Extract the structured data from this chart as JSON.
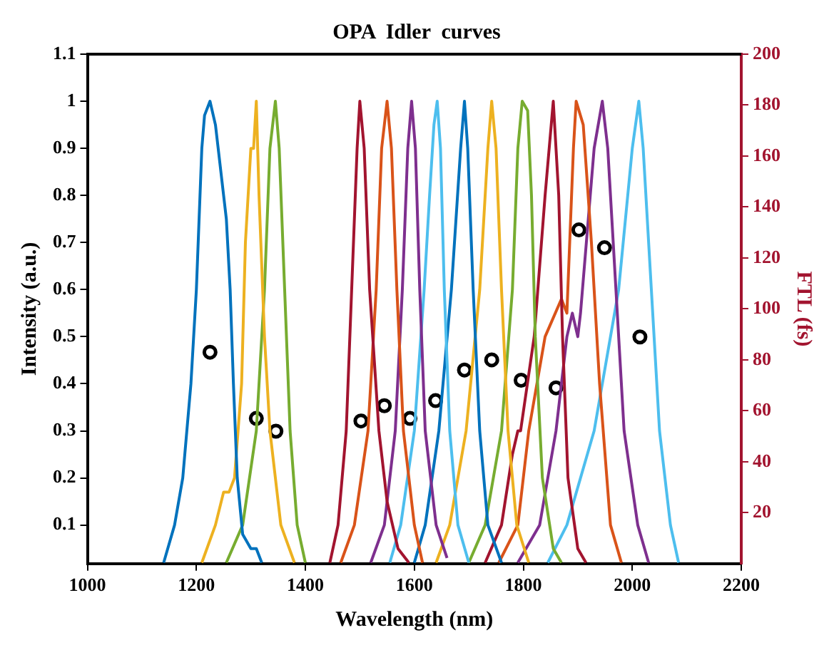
{
  "chart_data": {
    "type": "line",
    "title": "OPA  Idler  curves",
    "xlabel": "Wavelength (nm)",
    "ylabel": "Intensity (a.u.)",
    "y2label": "FTL (fs)",
    "xlim": [
      1000,
      2200
    ],
    "xticks": [
      1000,
      1200,
      1400,
      1600,
      1800,
      2000,
      2200
    ],
    "ylim": [
      0.018,
      1.1
    ],
    "yticks": [
      0.1,
      0.2,
      0.3,
      0.4,
      0.5,
      0.6,
      0.7,
      0.8,
      0.9,
      1,
      1.1
    ],
    "y2lim": [
      0,
      200
    ],
    "y2ticks": [
      20,
      40,
      60,
      80,
      100,
      120,
      140,
      160,
      180,
      200
    ],
    "grid": false,
    "legend": false,
    "marker": "none",
    "line_style": "solid",
    "series": [
      {
        "color": "#0072bd",
        "x": [
          1140,
          1160,
          1175,
          1190,
          1200,
          1210,
          1215,
          1225,
          1235,
          1250,
          1255,
          1262,
          1268,
          1275,
          1285,
          1300,
          1310,
          1320
        ],
        "values": [
          0.02,
          0.1,
          0.2,
          0.4,
          0.6,
          0.9,
          0.97,
          1.0,
          0.95,
          0.8,
          0.75,
          0.6,
          0.4,
          0.2,
          0.08,
          0.05,
          0.05,
          0.02
        ]
      },
      {
        "color": "#edb120",
        "x": [
          1210,
          1235,
          1250,
          1260,
          1270,
          1283,
          1290,
          1300,
          1305,
          1310,
          1315,
          1325,
          1335,
          1355,
          1380
        ],
        "values": [
          0.02,
          0.1,
          0.17,
          0.17,
          0.2,
          0.4,
          0.7,
          0.9,
          0.9,
          1.0,
          0.8,
          0.5,
          0.3,
          0.1,
          0.02
        ]
      },
      {
        "color": "#77ac30",
        "x": [
          1255,
          1285,
          1310,
          1325,
          1335,
          1345,
          1352,
          1362,
          1372,
          1385,
          1400
        ],
        "values": [
          0.02,
          0.1,
          0.3,
          0.6,
          0.9,
          1.0,
          0.9,
          0.6,
          0.3,
          0.1,
          0.02
        ]
      },
      {
        "color": "#a2142f",
        "x": [
          1445,
          1460,
          1475,
          1485,
          1495,
          1500,
          1508,
          1518,
          1535,
          1550,
          1570,
          1590
        ],
        "values": [
          0.02,
          0.1,
          0.3,
          0.6,
          0.9,
          1.0,
          0.9,
          0.6,
          0.3,
          0.15,
          0.05,
          0.02
        ]
      },
      {
        "color": "#d95319",
        "x": [
          1465,
          1490,
          1515,
          1530,
          1540,
          1550,
          1558,
          1568,
          1580,
          1600,
          1615
        ],
        "values": [
          0.02,
          0.1,
          0.3,
          0.6,
          0.9,
          1.0,
          0.9,
          0.6,
          0.3,
          0.1,
          0.02
        ]
      },
      {
        "color": "#7e2f8e",
        "x": [
          1520,
          1545,
          1565,
          1578,
          1588,
          1595,
          1602,
          1610,
          1620,
          1640,
          1660
        ],
        "values": [
          0.02,
          0.1,
          0.3,
          0.6,
          0.9,
          1.0,
          0.9,
          0.6,
          0.3,
          0.1,
          0.03
        ]
      },
      {
        "color": "#4dbeee",
        "x": [
          1555,
          1575,
          1600,
          1618,
          1628,
          1636,
          1642,
          1648,
          1655,
          1665,
          1680,
          1700
        ],
        "values": [
          0.02,
          0.1,
          0.3,
          0.6,
          0.8,
          0.95,
          1.0,
          0.9,
          0.6,
          0.3,
          0.1,
          0.02
        ]
      },
      {
        "color": "#0072bd",
        "x": [
          1600,
          1620,
          1645,
          1668,
          1685,
          1692,
          1698,
          1708,
          1720,
          1735,
          1760
        ],
        "values": [
          0.02,
          0.1,
          0.3,
          0.6,
          0.9,
          1.0,
          0.9,
          0.6,
          0.3,
          0.1,
          0.02
        ]
      },
      {
        "color": "#edb120",
        "x": [
          1640,
          1665,
          1695,
          1720,
          1735,
          1742,
          1750,
          1760,
          1772,
          1788,
          1810
        ],
        "values": [
          0.02,
          0.1,
          0.3,
          0.6,
          0.9,
          1.0,
          0.9,
          0.6,
          0.3,
          0.1,
          0.02
        ]
      },
      {
        "color": "#77ac30",
        "x": [
          1700,
          1730,
          1760,
          1780,
          1790,
          1798,
          1808,
          1815,
          1822,
          1835,
          1855,
          1870
        ],
        "values": [
          0.02,
          0.1,
          0.3,
          0.6,
          0.9,
          1.0,
          0.98,
          0.8,
          0.5,
          0.2,
          0.05,
          0.02
        ]
      },
      {
        "color": "#a2142f",
        "x": [
          1730,
          1760,
          1780,
          1790,
          1795,
          1820,
          1840,
          1855,
          1865,
          1872,
          1882,
          1900,
          1915
        ],
        "values": [
          0.02,
          0.1,
          0.25,
          0.3,
          0.3,
          0.5,
          0.8,
          1.0,
          0.8,
          0.5,
          0.2,
          0.05,
          0.02
        ]
      },
      {
        "color": "#d95319",
        "x": [
          1755,
          1790,
          1810,
          1840,
          1870,
          1880,
          1892,
          1897,
          1910,
          1925,
          1940,
          1960,
          1980
        ],
        "values": [
          0.02,
          0.1,
          0.3,
          0.5,
          0.58,
          0.55,
          0.9,
          1.0,
          0.95,
          0.7,
          0.4,
          0.1,
          0.02
        ]
      },
      {
        "color": "#7e2f8e",
        "x": [
          1790,
          1830,
          1860,
          1880,
          1890,
          1900,
          1905,
          1930,
          1945,
          1955,
          1970,
          1985,
          2010,
          2030
        ],
        "values": [
          0.02,
          0.1,
          0.3,
          0.5,
          0.55,
          0.5,
          0.55,
          0.9,
          1.0,
          0.9,
          0.6,
          0.3,
          0.1,
          0.02
        ]
      },
      {
        "color": "#4dbeee",
        "x": [
          1845,
          1880,
          1930,
          1975,
          2000,
          2012,
          2020,
          2035,
          2050,
          2070,
          2085
        ],
        "values": [
          0.02,
          0.1,
          0.3,
          0.6,
          0.9,
          1.0,
          0.9,
          0.6,
          0.3,
          0.1,
          0.02
        ]
      },
      {
        "type": "scatter",
        "axis": "y2",
        "marker": "circle",
        "color": "#000000",
        "x": [
          1225,
          1310,
          1346,
          1502,
          1545,
          1592,
          1639,
          1692,
          1742,
          1796,
          1860,
          1902,
          1949,
          2014
        ],
        "values": [
          83,
          57,
          52,
          56,
          62,
          57,
          64,
          76,
          80,
          72,
          69,
          131,
          124,
          89
        ]
      }
    ]
  }
}
